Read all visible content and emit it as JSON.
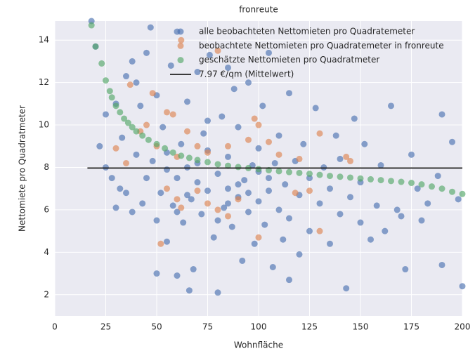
{
  "chart_data": {
    "type": "scatter",
    "title": "fronreute",
    "xlabel": "Wohnfläche",
    "ylabel": "Nettomiete pro Quadratmeter",
    "xlim": [
      0,
      200
    ],
    "ylim": [
      1.0,
      14.9
    ],
    "xticks": [
      0,
      25,
      50,
      75,
      100,
      125,
      150,
      175,
      200
    ],
    "yticks": [
      2,
      4,
      6,
      8,
      10,
      12,
      14
    ],
    "grid": true,
    "legend": "upper center",
    "series": [
      {
        "name": "alle beobachteten Nettomieten pro Quadratemeter",
        "type": "scatter",
        "color": "#4c72b0",
        "x": [
          18,
          20,
          22,
          25,
          25,
          28,
          30,
          30,
          32,
          33,
          35,
          35,
          38,
          38,
          40,
          40,
          42,
          43,
          45,
          45,
          47,
          48,
          50,
          50,
          52,
          53,
          55,
          55,
          57,
          58,
          60,
          60,
          62,
          63,
          65,
          65,
          67,
          68,
          70,
          70,
          72,
          73,
          75,
          75,
          76,
          78,
          80,
          80,
          82,
          83,
          85,
          85,
          87,
          88,
          90,
          90,
          92,
          93,
          95,
          95,
          97,
          98,
          100,
          100,
          102,
          103,
          105,
          105,
          107,
          108,
          110,
          110,
          112,
          113,
          115,
          115,
          118,
          120,
          120,
          122,
          125,
          125,
          128,
          130,
          132,
          135,
          135,
          138,
          140,
          140,
          143,
          145,
          147,
          150,
          150,
          152,
          155,
          158,
          160,
          162,
          165,
          168,
          170,
          172,
          175,
          178,
          180,
          183,
          188,
          190,
          190,
          195,
          198,
          200,
          60,
          50,
          66,
          115,
          85,
          75,
          95,
          65,
          55,
          105,
          80,
          70,
          90,
          100,
          60,
          85
        ],
        "values": [
          14.9,
          13.7,
          9.0,
          10.5,
          8.0,
          7.5,
          6.1,
          11.0,
          7.0,
          9.4,
          12.3,
          6.8,
          13.0,
          5.9,
          8.6,
          12.0,
          10.9,
          6.3,
          7.5,
          13.4,
          14.6,
          8.3,
          5.5,
          11.4,
          6.8,
          9.9,
          7.9,
          4.5,
          12.8,
          6.2,
          7.5,
          14.4,
          9.1,
          5.4,
          8.0,
          11.1,
          6.5,
          3.2,
          7.3,
          12.5,
          5.8,
          9.6,
          6.9,
          8.8,
          13.3,
          4.7,
          7.7,
          2.1,
          10.4,
          6.1,
          7.0,
          8.5,
          5.2,
          11.7,
          6.6,
          9.9,
          3.6,
          7.4,
          5.9,
          12.0,
          8.1,
          4.4,
          6.4,
          7.8,
          10.9,
          5.3,
          6.9,
          13.4,
          3.3,
          8.2,
          6.0,
          9.5,
          4.6,
          7.2,
          11.5,
          5.6,
          8.3,
          6.7,
          3.9,
          9.1,
          7.5,
          5.0,
          10.8,
          6.3,
          8.0,
          4.4,
          7.0,
          9.5,
          5.8,
          8.4,
          2.3,
          6.6,
          10.3,
          5.4,
          7.3,
          9.1,
          4.6,
          6.2,
          8.1,
          5.0,
          10.9,
          6.0,
          5.7,
          3.2,
          8.6,
          7.0,
          5.5,
          6.3,
          7.6,
          10.5,
          3.4,
          9.2,
          6.5,
          2.4,
          2.9,
          3.0,
          2.2,
          2.7,
          12.7,
          10.2,
          6.8,
          6.7,
          8.7,
          7.5,
          5.5,
          8.2,
          7.2,
          8.9,
          5.9,
          6.3
        ]
      },
      {
        "name": "beobachtete Nettomieten pro Quadratemeter in fronreute",
        "type": "scatter",
        "color": "#dd8452",
        "x": [
          37,
          45,
          48,
          55,
          58,
          62,
          80,
          42,
          50,
          65,
          75,
          85,
          95,
          98,
          100,
          105,
          130,
          143,
          145,
          120,
          35,
          55,
          60,
          62,
          70,
          75,
          80,
          85,
          90,
          100,
          110,
          118,
          125,
          130,
          60,
          52,
          70,
          30
        ],
        "values": [
          11.9,
          10.0,
          11.5,
          10.6,
          10.5,
          14.0,
          13.5,
          9.7,
          9.0,
          9.7,
          8.7,
          9.0,
          9.3,
          10.3,
          10.0,
          9.2,
          9.6,
          8.5,
          8.3,
          8.4,
          8.2,
          7.0,
          6.5,
          6.1,
          6.9,
          6.3,
          6.0,
          5.7,
          6.5,
          4.7,
          8.6,
          6.8,
          6.9,
          5.0,
          8.5,
          4.4,
          9.0,
          8.9
        ]
      },
      {
        "name": "geschätzte Nettomieten pro Quadratmeter",
        "type": "scatter",
        "color": "#55a868",
        "x": [
          18,
          20,
          23,
          25,
          27,
          28,
          30,
          32,
          34,
          36,
          38,
          40,
          43,
          46,
          50,
          54,
          58,
          62,
          66,
          70,
          75,
          80,
          85,
          90,
          95,
          100,
          105,
          110,
          115,
          120,
          125,
          130,
          135,
          140,
          145,
          150,
          155,
          160,
          165,
          170,
          175,
          180,
          185,
          190,
          195,
          200
        ],
        "values": [
          14.7,
          13.7,
          12.9,
          12.1,
          11.6,
          11.3,
          10.9,
          10.6,
          10.3,
          10.1,
          9.9,
          9.7,
          9.5,
          9.3,
          9.1,
          8.9,
          8.7,
          8.55,
          8.45,
          8.35,
          8.25,
          8.15,
          8.08,
          8.02,
          7.97,
          7.92,
          7.87,
          7.82,
          7.78,
          7.74,
          7.7,
          7.65,
          7.6,
          7.56,
          7.52,
          7.48,
          7.44,
          7.4,
          7.36,
          7.32,
          7.27,
          7.2,
          7.1,
          7.0,
          6.85,
          6.75
        ]
      },
      {
        "name": "7.97 €/qm (Mittelwert)",
        "type": "line",
        "color": "#1a1a1a",
        "x": [
          16,
          200
        ],
        "values": [
          7.97,
          7.97
        ]
      }
    ]
  }
}
